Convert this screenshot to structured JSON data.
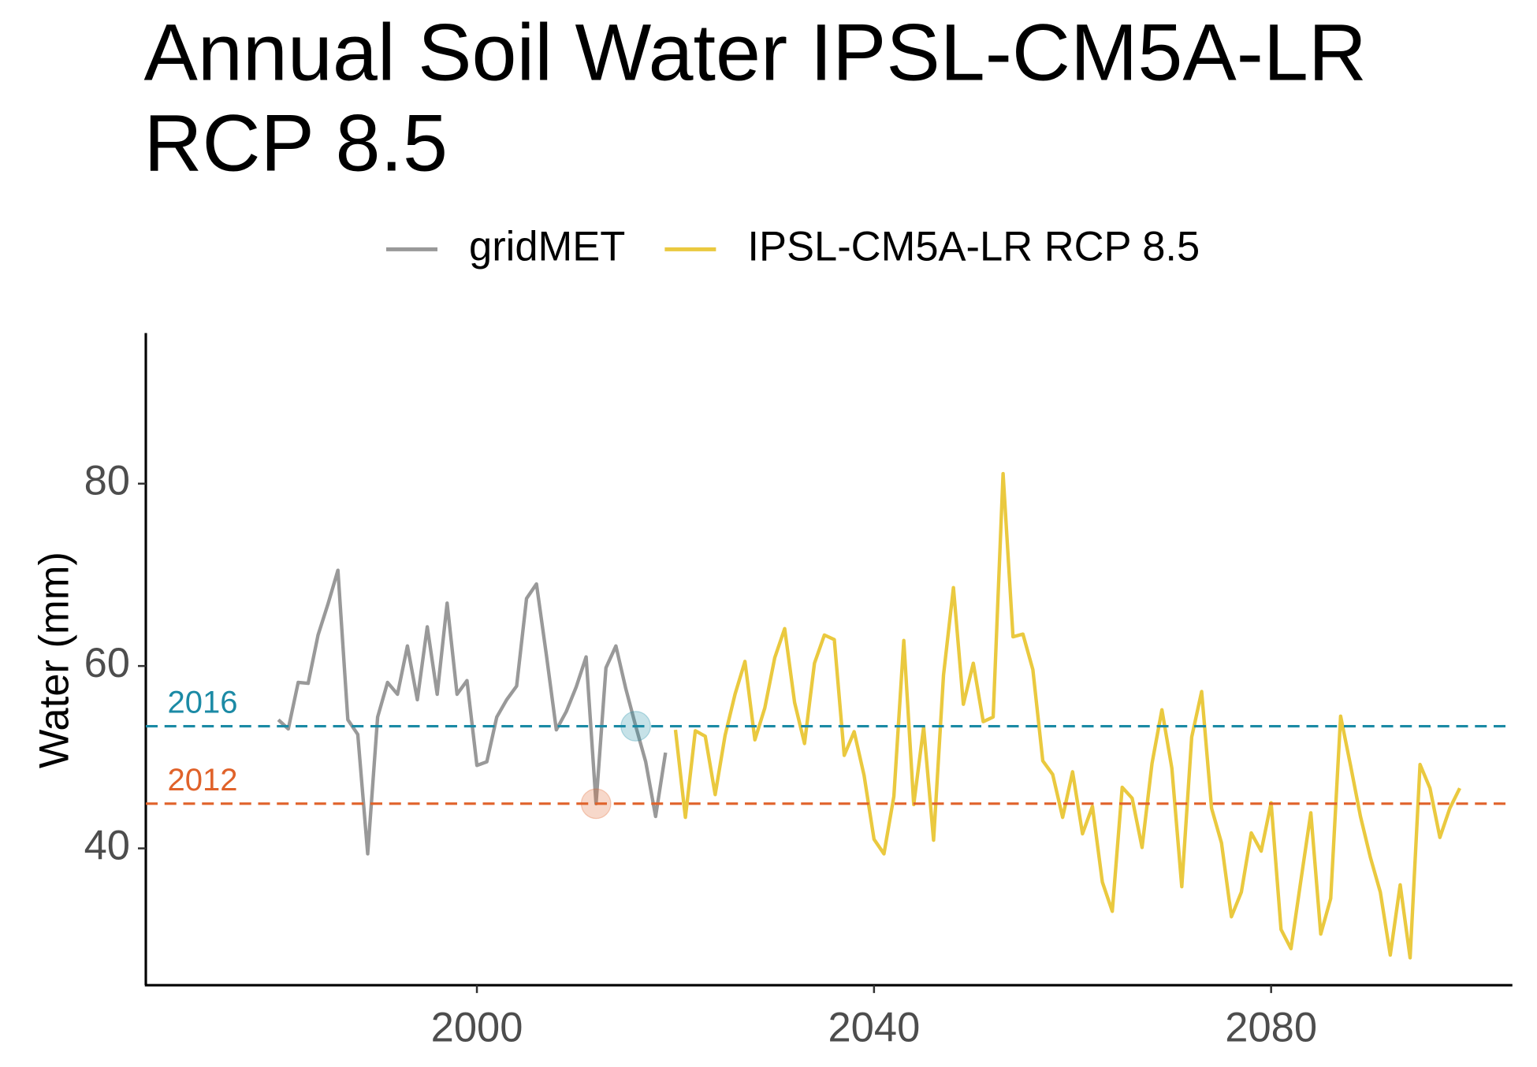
{
  "chart_data": {
    "type": "line",
    "title": "Annual Soil Water IPSL-CM5A-LR RCP 8.5",
    "y_label": "Water (mm)",
    "xlim": [
      1966.65,
      2104.3
    ],
    "ylim": [
      25,
      96.3
    ],
    "xticks": [
      2000,
      2040,
      2080
    ],
    "yticks": [
      40,
      60,
      80
    ],
    "legend": "top",
    "series": [
      {
        "name": "gridMET",
        "color": "#999999",
        "x": [
          1980,
          1981,
          1982,
          1983,
          1984,
          1985,
          1986,
          1987,
          1988,
          1989,
          1990,
          1991,
          1992,
          1993,
          1994,
          1995,
          1996,
          1997,
          1998,
          1999,
          2000,
          2001,
          2002,
          2003,
          2004,
          2005,
          2006,
          2007,
          2008,
          2009,
          2010,
          2011,
          2012,
          2013,
          2014,
          2015,
          2016,
          2017,
          2018,
          2019
        ],
        "values": [
          54.1,
          53.1,
          58.2,
          58.1,
          63.4,
          66.8,
          70.5,
          54.1,
          52.5,
          39.4,
          54.4,
          58.2,
          56.9,
          62.2,
          56.3,
          64.3,
          56.9,
          66.9,
          56.9,
          58.4,
          49.1,
          49.5,
          54.4,
          56.3,
          57.8,
          67.4,
          69.0,
          61.2,
          53.0,
          55.0,
          57.7,
          61.0,
          44.9,
          59.8,
          62.2,
          57.5,
          53.4,
          49.5,
          43.5,
          50.5
        ]
      },
      {
        "name": "IPSL-CM5A-LR RCP 8.5",
        "color": "#eac93f",
        "x": [
          2020,
          2021,
          2022,
          2023,
          2024,
          2025,
          2026,
          2027,
          2028,
          2029,
          2030,
          2031,
          2032,
          2033,
          2034,
          2035,
          2036,
          2037,
          2038,
          2039,
          2040,
          2041,
          2042,
          2043,
          2044,
          2045,
          2046,
          2047,
          2048,
          2049,
          2050,
          2051,
          2052,
          2053,
          2054,
          2055,
          2056,
          2057,
          2058,
          2059,
          2060,
          2061,
          2062,
          2063,
          2064,
          2065,
          2066,
          2067,
          2068,
          2069,
          2070,
          2071,
          2072,
          2073,
          2074,
          2075,
          2076,
          2077,
          2078,
          2079,
          2080,
          2081,
          2082,
          2083,
          2084,
          2085,
          2086,
          2087,
          2088,
          2089,
          2090,
          2091,
          2092,
          2093,
          2094,
          2095,
          2096,
          2097,
          2098,
          2099
        ],
        "values": [
          53.0,
          43.4,
          52.9,
          52.3,
          45.9,
          52.4,
          56.9,
          60.5,
          51.9,
          55.4,
          60.9,
          64.1,
          56.0,
          51.5,
          60.3,
          63.4,
          62.9,
          50.2,
          52.8,
          48.0,
          41.0,
          39.4,
          45.7,
          62.8,
          44.8,
          53.3,
          40.9,
          59.0,
          68.6,
          55.8,
          60.3,
          53.9,
          54.4,
          81.1,
          63.2,
          63.5,
          59.6,
          49.6,
          48.1,
          43.4,
          48.4,
          41.6,
          44.6,
          36.3,
          33.1,
          46.7,
          45.5,
          40.1,
          49.3,
          55.2,
          48.8,
          35.8,
          52.2,
          57.2,
          44.4,
          40.6,
          32.5,
          35.2,
          41.7,
          39.7,
          45.0,
          31.1,
          29.0,
          36.5,
          43.9,
          30.6,
          34.5,
          54.5,
          49.1,
          43.5,
          39.0,
          35.2,
          28.3,
          36.0,
          28.0,
          49.2,
          46.6,
          41.2,
          44.4,
          46.6
        ]
      }
    ],
    "reference_lines": [
      {
        "label": "2016",
        "value": 53.4,
        "color": "#1b8aa5"
      },
      {
        "label": "2012",
        "value": 44.9,
        "color": "#e0622a"
      }
    ]
  }
}
